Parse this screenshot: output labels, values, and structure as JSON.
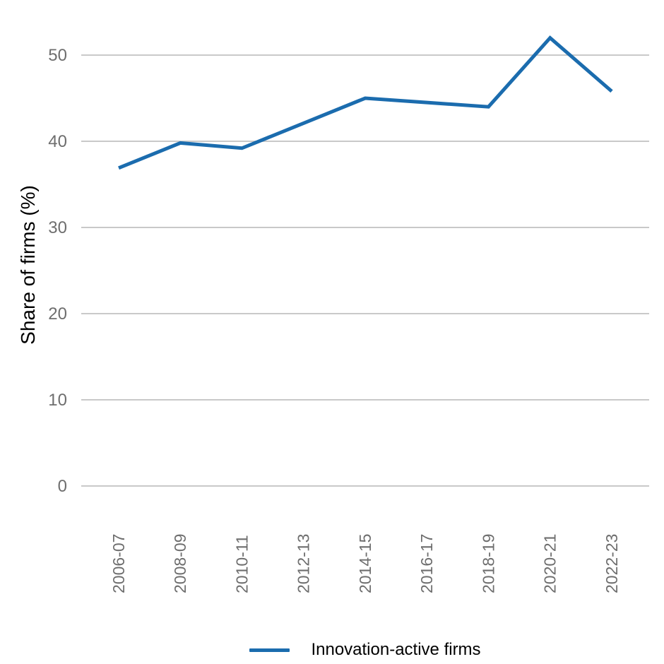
{
  "page": {
    "background": "#ffffff"
  },
  "chart_data": {
    "type": "line",
    "title": "",
    "xlabel": "",
    "ylabel": "Share of firms (%)",
    "categories": [
      "2006-07",
      "2008-09",
      "2010-11",
      "2012-13",
      "2014-15",
      "2016-17",
      "2018-19",
      "2020-21",
      "2022-23"
    ],
    "series": [
      {
        "name": "Innovation-active firms",
        "color": "#1B6CAE",
        "values": [
          36.9,
          39.8,
          39.2,
          42.1,
          45.0,
          44.5,
          44.0,
          52.0,
          45.8
        ]
      }
    ],
    "ylim": [
      0,
      55
    ],
    "yticks": [
      0,
      10,
      20,
      30,
      40,
      50
    ],
    "grid": true,
    "grid_axis": "y",
    "legend_position": "bottom",
    "colors": {
      "grid": "#c9c9c9",
      "tick_label": "#6e6e6e",
      "axis_title": "#000000",
      "legend_text": "#000000"
    }
  }
}
